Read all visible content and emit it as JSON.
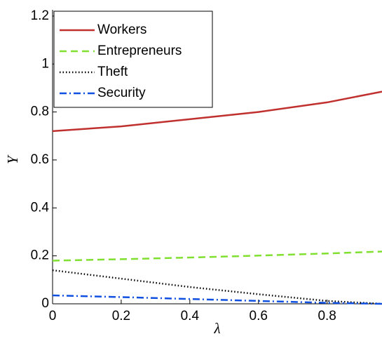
{
  "chart_data": {
    "type": "line",
    "x_label": "λ",
    "y_label": "Y",
    "x": [
      0,
      0.2,
      0.4,
      0.6,
      0.8,
      0.96
    ],
    "series": [
      {
        "name": "Workers",
        "color": "#c0302f",
        "style": "solid",
        "values": [
          0.72,
          0.74,
          0.77,
          0.8,
          0.84,
          0.885
        ]
      },
      {
        "name": "Entrepreneurs",
        "color": "#80e030",
        "style": "dashed",
        "values": [
          0.18,
          0.186,
          0.193,
          0.201,
          0.21,
          0.218
        ]
      },
      {
        "name": "Theft",
        "color": "#000000",
        "style": "dotted",
        "values": [
          0.14,
          0.105,
          0.07,
          0.04,
          0.012,
          0.0
        ]
      },
      {
        "name": "Security",
        "color": "#1050e0",
        "style": "dashdot",
        "values": [
          0.035,
          0.028,
          0.02,
          0.012,
          0.004,
          0.0
        ]
      }
    ],
    "xlim": [
      0,
      0.96
    ],
    "xticks": [
      0,
      0.2,
      0.4,
      0.6,
      0.8
    ],
    "ylim": [
      0,
      1.226
    ],
    "yticks": [
      0,
      0.2,
      0.4,
      0.6,
      0.8,
      1,
      1.2
    ],
    "legend": "upper left",
    "grid": false
  }
}
